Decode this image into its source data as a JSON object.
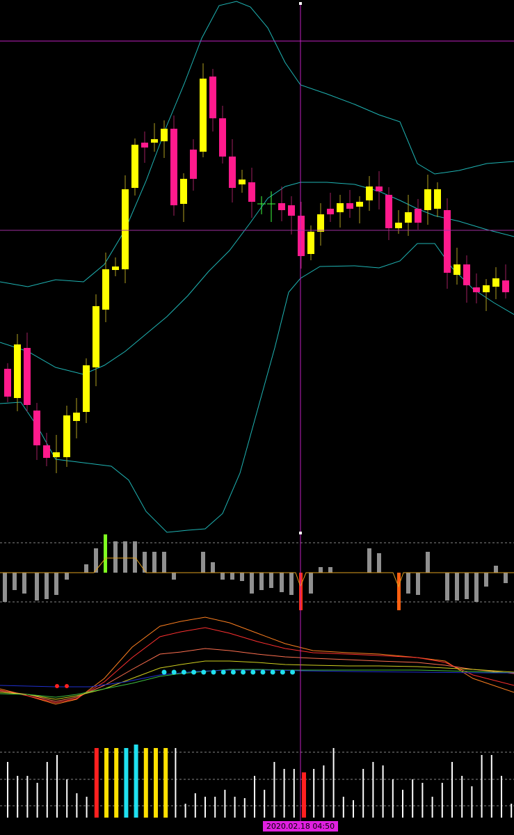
{
  "cursor_label": "2020.02.18 04:50"
}
